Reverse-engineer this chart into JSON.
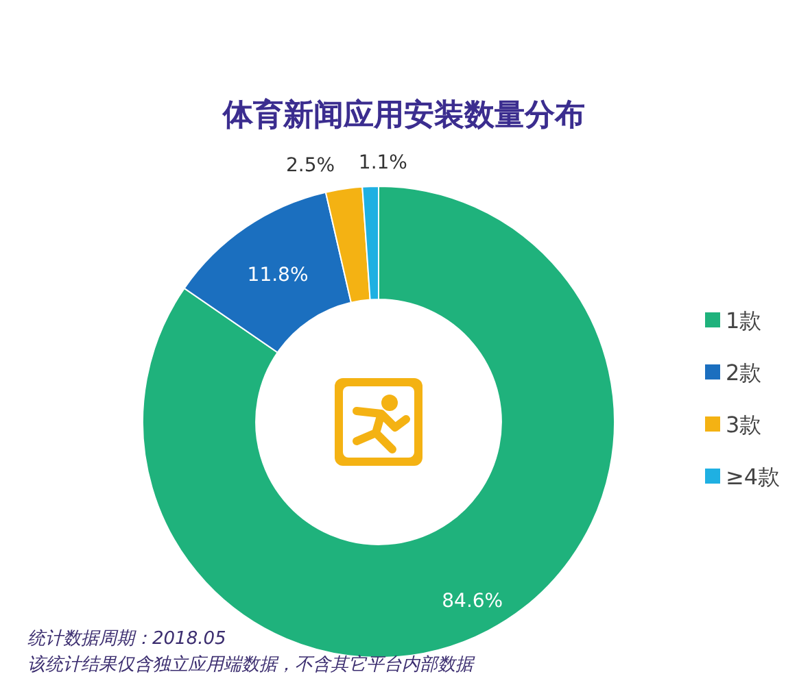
{
  "chart_data": {
    "type": "donut",
    "title": "体育新闻应用安装数量分布",
    "categories": [
      "1款",
      "2款",
      "3款",
      "≥4款"
    ],
    "values": [
      84.6,
      11.8,
      2.5,
      1.1
    ],
    "colors": [
      "#1fb27c",
      "#1b6fbf",
      "#f4b213",
      "#1fb0e2"
    ],
    "value_labels": [
      "84.6%",
      "11.8%",
      "2.5%",
      "1.1%"
    ],
    "legend": "right",
    "annotations": [
      "统计数据周期：2018.05",
      "该统计结果仅含独立应用端数据，不含其它平台内部数据"
    ]
  }
}
